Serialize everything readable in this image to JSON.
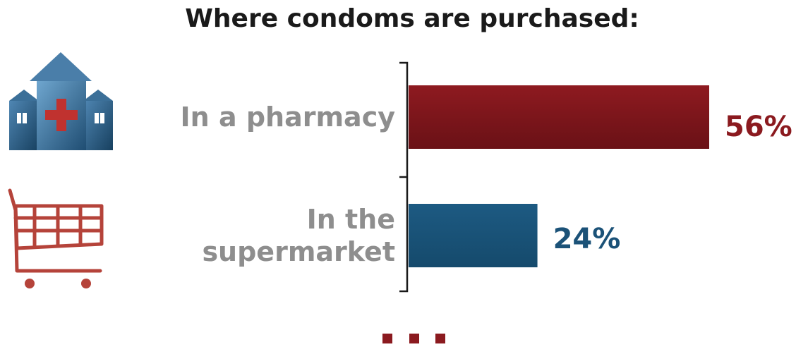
{
  "chart_data": {
    "type": "bar",
    "orientation": "horizontal",
    "title": "Where condoms are purchased:",
    "categories": [
      {
        "lines": [
          "In a pharmacy"
        ],
        "icon": "pharmacy-building-icon"
      },
      {
        "lines": [
          "In the",
          "supermarket"
        ],
        "icon": "shopping-cart-icon"
      }
    ],
    "values": [
      56,
      24
    ],
    "value_labels": [
      "56%",
      "24%"
    ],
    "colors": [
      "#8b1a1f",
      "#1b5278"
    ],
    "xlim": [
      0,
      100
    ],
    "grid": false,
    "legend": "none",
    "continuation_marker": "more-dots"
  }
}
